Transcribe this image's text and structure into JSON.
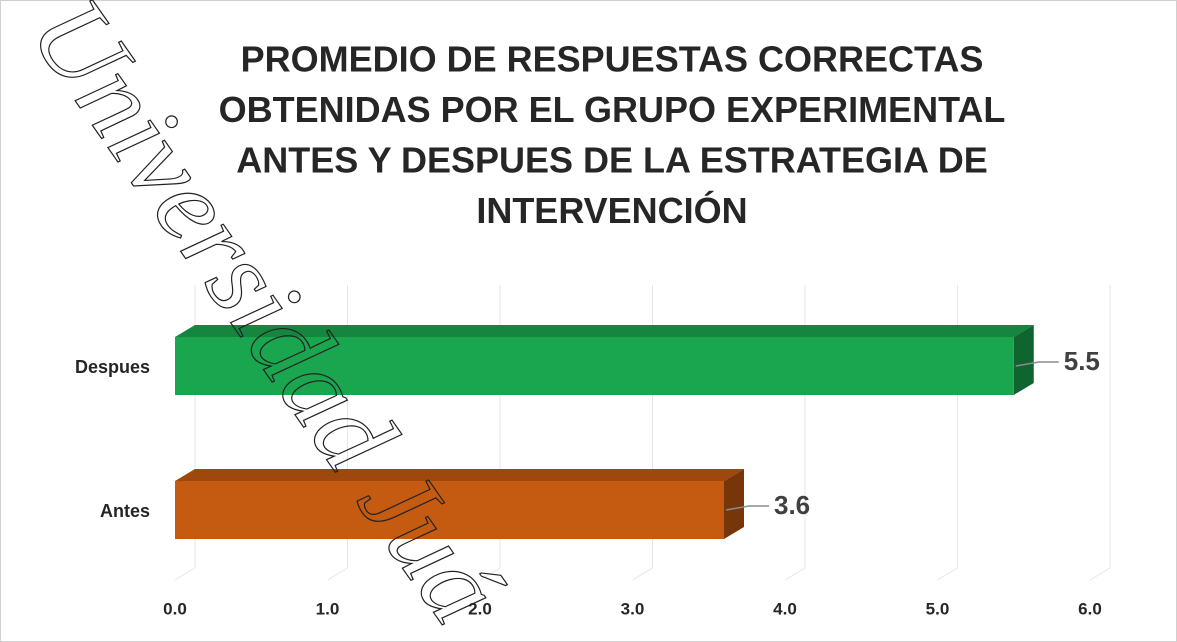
{
  "chart_data": {
    "type": "bar",
    "orientation": "horizontal",
    "title": [
      "PROMEDIO DE RESPUESTAS CORRECTAS",
      "OBTENIDAS POR EL GRUPO EXPERIMENTAL",
      "ANTES Y DESPUES DE LA ESTRATEGIA DE",
      "INTERVENCIÓN"
    ],
    "categories": [
      "Despues",
      "Antes"
    ],
    "values": [
      5.5,
      3.6
    ],
    "colors": [
      "#1aa64f",
      "#c55a11"
    ],
    "xlim": [
      0,
      6
    ],
    "xticks": [
      {
        "value": 0,
        "label": "0.0"
      },
      {
        "value": 1,
        "label": "1.0"
      },
      {
        "value": 2,
        "label": "2.0"
      },
      {
        "value": 3,
        "label": "3.0"
      },
      {
        "value": 4,
        "label": "4.0"
      },
      {
        "value": 5,
        "label": "5.0"
      },
      {
        "value": 6,
        "label": "6.0"
      }
    ],
    "grid": true,
    "watermark": "Universidad Juá"
  }
}
